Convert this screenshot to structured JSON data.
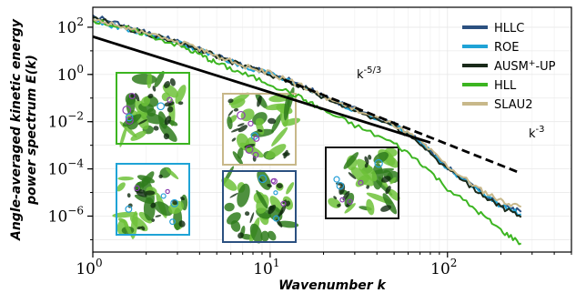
{
  "chart_data": {
    "type": "line",
    "title": "",
    "xlabel": "Wavenumber k",
    "ylabel_line1": "Angle-averaged kinetic energy",
    "ylabel_line2": "power spectrum E(k)",
    "xscale": "log",
    "yscale": "log",
    "xlim": [
      1,
      500
    ],
    "ylim": [
      3e-08,
      700
    ],
    "x_ticks": [
      {
        "value": 1,
        "base": "10",
        "exp": "0"
      },
      {
        "value": 10,
        "base": "10",
        "exp": "1"
      },
      {
        "value": 100,
        "base": "10",
        "exp": "2"
      }
    ],
    "y_ticks": [
      {
        "value": 100,
        "base": "10",
        "exp": "2"
      },
      {
        "value": 1,
        "base": "10",
        "exp": "0"
      },
      {
        "value": 0.01,
        "base": "10",
        "exp": "−2"
      },
      {
        "value": 0.0001,
        "base": "10",
        "exp": "−4"
      },
      {
        "value": 1e-06,
        "base": "10",
        "exp": "−6"
      }
    ],
    "grid": true,
    "legend_position": "top-right",
    "series": [
      {
        "name": "HLLC",
        "color": "#2b5080",
        "x": [
          1,
          1.5,
          2,
          3,
          4,
          5,
          7,
          10,
          15,
          20,
          30,
          50,
          70,
          100,
          150,
          200,
          260
        ],
        "y": [
          320,
          110,
          60,
          25,
          12,
          6,
          2.5,
          1.2,
          0.35,
          0.12,
          0.035,
          0.008,
          0.0015,
          0.00012,
          1.2e-05,
          3e-06,
          1.5e-06
        ]
      },
      {
        "name": "ROE",
        "color": "#1fa3d6",
        "x": [
          1,
          1.5,
          2,
          3,
          4,
          5,
          7,
          10,
          15,
          20,
          30,
          50,
          70,
          100,
          150,
          200,
          260
        ],
        "y": [
          180,
          90,
          50,
          22,
          11,
          5.5,
          2.2,
          1.1,
          0.32,
          0.11,
          0.032,
          0.007,
          0.0014,
          0.00011,
          1.1e-05,
          2.8e-06,
          1.2e-06
        ]
      },
      {
        "name": "AUSM+-UP",
        "color": "#1a2a1a",
        "x": [
          1,
          1.5,
          2,
          3,
          4,
          5,
          7,
          10,
          15,
          20,
          30,
          50,
          70,
          100,
          150,
          200,
          260
        ],
        "y": [
          250,
          100,
          55,
          23,
          11,
          5.8,
          2.3,
          1.0,
          0.3,
          0.1,
          0.03,
          0.0065,
          0.0012,
          0.0001,
          1e-05,
          2.5e-06,
          9e-07
        ]
      },
      {
        "name": "HLL",
        "color": "#3cb521",
        "x": [
          1,
          1.5,
          2,
          3,
          4,
          5,
          7,
          10,
          15,
          20,
          30,
          50,
          70,
          100,
          150,
          200,
          260
        ],
        "y": [
          200,
          95,
          50,
          18,
          7,
          3,
          1.1,
          0.4,
          0.1,
          0.03,
          0.007,
          0.0012,
          0.0002,
          1.5e-05,
          1.5e-06,
          2.5e-07,
          7e-08
        ]
      },
      {
        "name": "SLAU2",
        "color": "#c8b88a",
        "x": [
          1,
          1.5,
          2,
          3,
          4,
          5,
          7,
          10,
          15,
          20,
          30,
          50,
          70,
          100,
          150,
          200,
          260
        ],
        "y": [
          220,
          100,
          52,
          24,
          12,
          6,
          2.4,
          1.1,
          0.33,
          0.12,
          0.034,
          0.0075,
          0.0015,
          0.00013,
          1.4e-05,
          4.5e-06,
          2.5e-06
        ]
      }
    ],
    "reference_lines": [
      {
        "label_base": "k",
        "label_exp": "-5/3",
        "style": "solid",
        "x": [
          1,
          80
        ],
        "y": [
          40,
          0.0013
        ]
      },
      {
        "label_base": "k",
        "label_exp": "-3",
        "style": "dashed",
        "x": [
          12,
          260
        ],
        "y": [
          0.6,
          6.5e-05
        ]
      }
    ],
    "insets": [
      {
        "name": "ROE-inset-1",
        "border": "#1fa3d6",
        "top": false,
        "style": "a"
      },
      {
        "name": "HLL-inset",
        "border": "#3cb521",
        "top": false,
        "style": "b"
      },
      {
        "name": "SLAU2-inset",
        "border": "#c8b88a",
        "top": false,
        "style": "c"
      },
      {
        "name": "HLLC-inset",
        "border": "#2b5080",
        "top": false,
        "style": "d"
      },
      {
        "name": "AUSM-inset",
        "border": "#111111",
        "top": false,
        "style": "e"
      }
    ]
  }
}
